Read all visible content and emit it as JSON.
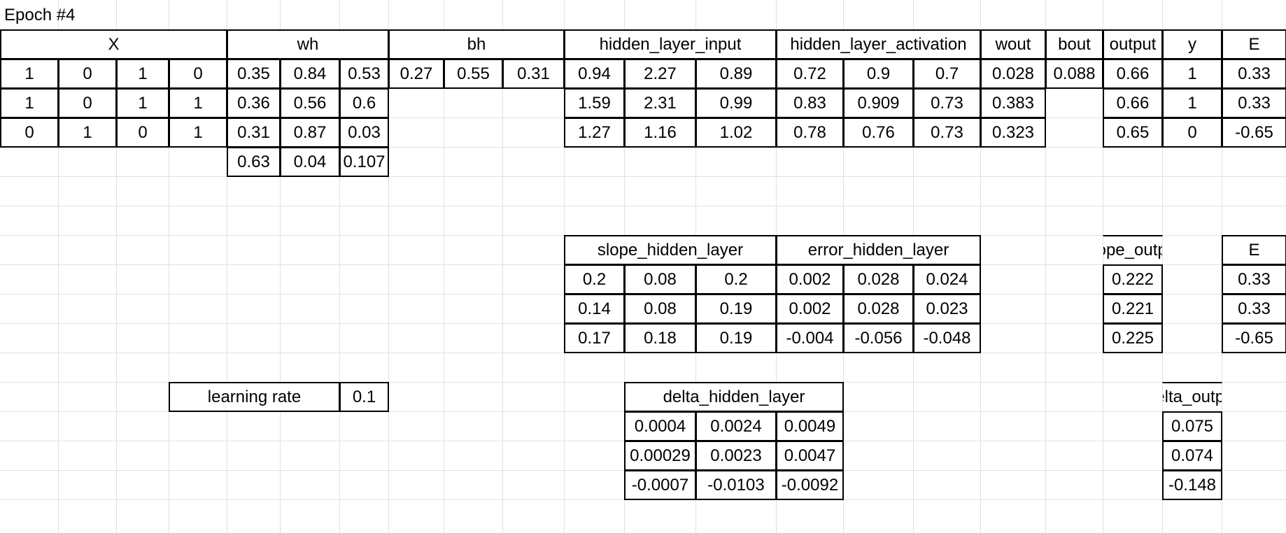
{
  "sheet": {
    "title": "Epoch #4",
    "headers": {
      "X": "X",
      "wh": "wh",
      "bh": "bh",
      "hidden_layer_input": "hidden_layer_input",
      "hidden_layer_activation": "hidden_layer_activation",
      "wout": "wout",
      "bout": "bout",
      "output": "output",
      "y": "y",
      "E": "E",
      "slope_hidden_layer": "slope_hidden_layer",
      "error_hidden_layer": "error_hidden_layer",
      "slope_output": "slope_output",
      "E2": "E",
      "delta_hidden_layer": "delta_hidden_layer",
      "delta_output": "delta_output",
      "learning_rate_label": "learning rate"
    },
    "learning_rate": "0.1",
    "X": [
      [
        "1",
        "0",
        "1",
        "0"
      ],
      [
        "1",
        "0",
        "1",
        "1"
      ],
      [
        "0",
        "1",
        "0",
        "1"
      ]
    ],
    "wh": [
      [
        "0.35",
        "0.84",
        "0.53"
      ],
      [
        "0.36",
        "0.56",
        "0.6"
      ],
      [
        "0.31",
        "0.87",
        "0.03"
      ],
      [
        "0.63",
        "0.04",
        "0.107"
      ]
    ],
    "bh": [
      "0.27",
      "0.55",
      "0.31"
    ],
    "hidden_layer_input": [
      [
        "0.94",
        "2.27",
        "0.89"
      ],
      [
        "1.59",
        "2.31",
        "0.99"
      ],
      [
        "1.27",
        "1.16",
        "1.02"
      ]
    ],
    "hidden_layer_activation": [
      [
        "0.72",
        "0.9",
        "0.7"
      ],
      [
        "0.83",
        "0.909",
        "0.73"
      ],
      [
        "0.78",
        "0.76",
        "0.73"
      ]
    ],
    "wout": [
      "0.028",
      "0.383",
      "0.323"
    ],
    "bout": "0.088",
    "output": [
      "0.66",
      "0.66",
      "0.65"
    ],
    "y": [
      "1",
      "1",
      "0"
    ],
    "E": [
      "0.33",
      "0.33",
      "-0.65"
    ],
    "slope_hidden_layer": [
      [
        "0.2",
        "0.08",
        "0.2"
      ],
      [
        "0.14",
        "0.08",
        "0.19"
      ],
      [
        "0.17",
        "0.18",
        "0.19"
      ]
    ],
    "error_hidden_layer": [
      [
        "0.002",
        "0.028",
        "0.024"
      ],
      [
        "0.002",
        "0.028",
        "0.023"
      ],
      [
        "-0.004",
        "-0.056",
        "-0.048"
      ]
    ],
    "slope_output": [
      "0.222",
      "0.221",
      "0.225"
    ],
    "E2": [
      "0.33",
      "0.33",
      "-0.65"
    ],
    "delta_hidden_layer": [
      [
        "0.0004",
        "0.0024",
        "0.0049"
      ],
      [
        "0.00029",
        "0.0023",
        "0.0047"
      ],
      [
        "-0.0007",
        "-0.0103",
        "-0.0092"
      ]
    ],
    "delta_output": [
      "0.075",
      "0.074",
      "-0.148"
    ]
  }
}
